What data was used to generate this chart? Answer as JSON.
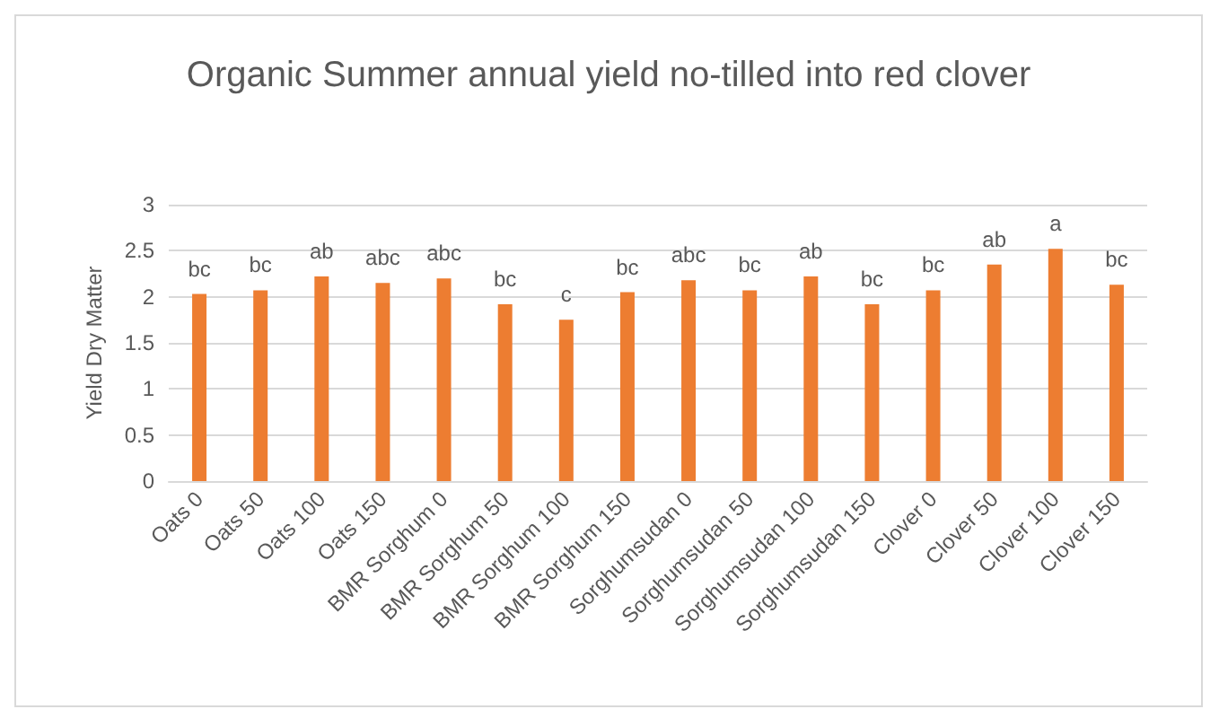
{
  "chart_data": {
    "type": "bar",
    "title": "Organic Summer annual yield no-tilled into red clover",
    "ylabel": "Yield Dry Matter",
    "categories": [
      "Oats 0",
      "Oats 50",
      "Oats 100",
      "Oats 150",
      "BMR Sorghum 0",
      "BMR Sorghum 50",
      "BMR Sorghum 100",
      "BMR Sorghum 150",
      "Sorghumsudan 0",
      "Sorghumsudan 50",
      "Sorghumsudan 100",
      "Sorghumsudan 150",
      "Clover 0",
      "Clover 50",
      "Clover 100",
      "Clover 150"
    ],
    "values": [
      2.03,
      2.07,
      2.22,
      2.15,
      2.2,
      1.92,
      1.75,
      2.05,
      2.18,
      2.07,
      2.22,
      1.92,
      2.07,
      2.35,
      2.52,
      2.13
    ],
    "value_labels": [
      "bc",
      "bc",
      "ab",
      "abc",
      "abc",
      "bc",
      "c",
      "bc",
      "abc",
      "bc",
      "ab",
      "bc",
      "bc",
      "ab",
      "a",
      "bc"
    ],
    "color": "#ed7d31",
    "ylim": [
      0,
      3
    ],
    "yticks": [
      0,
      0.5,
      1,
      1.5,
      2,
      2.5,
      3
    ],
    "grid": "y"
  }
}
